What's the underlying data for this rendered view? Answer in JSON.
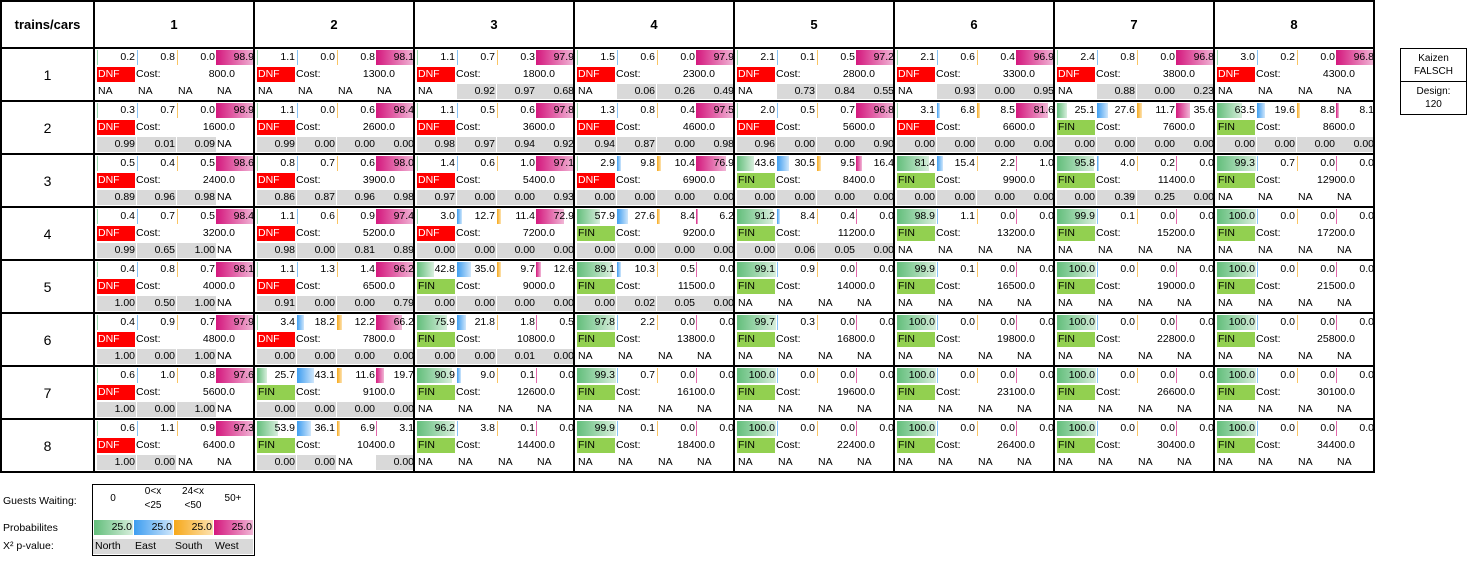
{
  "header": {
    "corner": "trains/cars",
    "cols": [
      "1",
      "2",
      "3",
      "4",
      "5",
      "6",
      "7",
      "8"
    ]
  },
  "rows": [
    {
      "label": "1",
      "cells": [
        {
          "p": [
            0.2,
            0.8,
            0.0,
            98.9
          ],
          "status": "DNF",
          "cost": "800.0",
          "x": [
            "NA",
            "NA",
            "NA",
            "NA"
          ]
        },
        {
          "p": [
            1.1,
            0.0,
            0.8,
            98.1
          ],
          "status": "DNF",
          "cost": "1300.0",
          "x": [
            "NA",
            "NA",
            "NA",
            "NA"
          ]
        },
        {
          "p": [
            1.1,
            0.7,
            0.3,
            97.9
          ],
          "status": "DNF",
          "cost": "1800.0",
          "x": [
            "NA",
            "0.92",
            "0.97",
            "0.68"
          ]
        },
        {
          "p": [
            1.5,
            0.6,
            0.0,
            97.9
          ],
          "status": "DNF",
          "cost": "2300.0",
          "x": [
            "NA",
            "0.06",
            "0.26",
            "0.49"
          ]
        },
        {
          "p": [
            2.1,
            0.1,
            0.5,
            97.2
          ],
          "status": "DNF",
          "cost": "2800.0",
          "x": [
            "NA",
            "0.73",
            "0.84",
            "0.55"
          ]
        },
        {
          "p": [
            2.1,
            0.6,
            0.4,
            96.9
          ],
          "status": "DNF",
          "cost": "3300.0",
          "x": [
            "NA",
            "0.93",
            "0.00",
            "0.95"
          ]
        },
        {
          "p": [
            2.4,
            0.8,
            0.0,
            96.8
          ],
          "status": "DNF",
          "cost": "3800.0",
          "x": [
            "NA",
            "0.88",
            "0.00",
            "0.23"
          ]
        },
        {
          "p": [
            3.0,
            0.2,
            0.0,
            96.8
          ],
          "status": "DNF",
          "cost": "4300.0",
          "x": [
            "NA",
            "NA",
            "NA",
            "NA"
          ]
        }
      ]
    },
    {
      "label": "2",
      "cells": [
        {
          "p": [
            0.3,
            0.7,
            0.0,
            98.9
          ],
          "status": "DNF",
          "cost": "1600.0",
          "x": [
            "0.99",
            "0.01",
            "0.09",
            "NA"
          ]
        },
        {
          "p": [
            1.1,
            0.0,
            0.6,
            98.4
          ],
          "status": "DNF",
          "cost": "2600.0",
          "x": [
            "0.99",
            "0.00",
            "0.00",
            "0.00"
          ]
        },
        {
          "p": [
            1.1,
            0.5,
            0.6,
            97.8
          ],
          "status": "DNF",
          "cost": "3600.0",
          "x": [
            "0.98",
            "0.97",
            "0.94",
            "0.92"
          ]
        },
        {
          "p": [
            1.3,
            0.8,
            0.4,
            97.5
          ],
          "status": "DNF",
          "cost": "4600.0",
          "x": [
            "0.94",
            "0.87",
            "0.00",
            "0.98"
          ]
        },
        {
          "p": [
            2.0,
            0.5,
            0.7,
            96.8
          ],
          "status": "DNF",
          "cost": "5600.0",
          "x": [
            "0.96",
            "0.00",
            "0.00",
            "0.90"
          ]
        },
        {
          "p": [
            3.1,
            6.8,
            8.5,
            81.6
          ],
          "status": "DNF",
          "cost": "6600.0",
          "x": [
            "0.00",
            "0.00",
            "0.00",
            "0.00"
          ]
        },
        {
          "p": [
            25.1,
            27.6,
            11.7,
            35.6
          ],
          "status": "FIN",
          "cost": "7600.0",
          "x": [
            "0.00",
            "0.00",
            "0.00",
            "0.00"
          ]
        },
        {
          "p": [
            63.5,
            19.6,
            8.8,
            8.1
          ],
          "status": "FIN",
          "cost": "8600.0",
          "x": [
            "0.00",
            "0.00",
            "0.00",
            "0.00"
          ]
        }
      ]
    },
    {
      "label": "3",
      "cells": [
        {
          "p": [
            0.5,
            0.4,
            0.5,
            98.6
          ],
          "status": "DNF",
          "cost": "2400.0",
          "x": [
            "0.89",
            "0.96",
            "0.98",
            "NA"
          ]
        },
        {
          "p": [
            0.8,
            0.7,
            0.6,
            98.0
          ],
          "status": "DNF",
          "cost": "3900.0",
          "x": [
            "0.86",
            "0.87",
            "0.96",
            "0.98"
          ]
        },
        {
          "p": [
            1.4,
            0.6,
            1.0,
            97.1
          ],
          "status": "DNF",
          "cost": "5400.0",
          "x": [
            "0.97",
            "0.00",
            "0.00",
            "0.93"
          ]
        },
        {
          "p": [
            2.9,
            9.8,
            10.4,
            76.9
          ],
          "status": "DNF",
          "cost": "6900.0",
          "x": [
            "0.00",
            "0.00",
            "0.00",
            "0.00"
          ]
        },
        {
          "p": [
            43.6,
            30.5,
            9.5,
            16.4
          ],
          "status": "FIN",
          "cost": "8400.0",
          "x": [
            "0.00",
            "0.00",
            "0.00",
            "0.00"
          ]
        },
        {
          "p": [
            81.4,
            15.4,
            2.2,
            1.0
          ],
          "status": "FIN",
          "cost": "9900.0",
          "x": [
            "0.00",
            "0.00",
            "0.00",
            "0.00"
          ]
        },
        {
          "p": [
            95.8,
            4.0,
            0.2,
            0.0
          ],
          "status": "FIN",
          "cost": "11400.0",
          "x": [
            "0.00",
            "0.39",
            "0.25",
            "0.00"
          ]
        },
        {
          "p": [
            99.3,
            0.7,
            0.0,
            0.0
          ],
          "status": "FIN",
          "cost": "12900.0",
          "x": [
            "NA",
            "NA",
            "NA",
            "NA"
          ]
        }
      ]
    },
    {
      "label": "4",
      "cells": [
        {
          "p": [
            0.4,
            0.7,
            0.5,
            98.4
          ],
          "status": "DNF",
          "cost": "3200.0",
          "x": [
            "0.99",
            "0.65",
            "1.00",
            "NA"
          ]
        },
        {
          "p": [
            1.1,
            0.6,
            0.9,
            97.4
          ],
          "status": "DNF",
          "cost": "5200.0",
          "x": [
            "0.98",
            "0.00",
            "0.81",
            "0.89"
          ]
        },
        {
          "p": [
            3.0,
            12.7,
            11.4,
            72.9
          ],
          "status": "DNF",
          "cost": "7200.0",
          "x": [
            "0.00",
            "0.00",
            "0.00",
            "0.00"
          ]
        },
        {
          "p": [
            57.9,
            27.6,
            8.4,
            6.2
          ],
          "status": "FIN",
          "cost": "9200.0",
          "x": [
            "0.00",
            "0.00",
            "0.00",
            "0.00"
          ]
        },
        {
          "p": [
            91.2,
            8.4,
            0.4,
            0.0
          ],
          "status": "FIN",
          "cost": "11200.0",
          "x": [
            "0.00",
            "0.06",
            "0.05",
            "0.00"
          ]
        },
        {
          "p": [
            98.9,
            1.1,
            0.0,
            0.0
          ],
          "status": "FIN",
          "cost": "13200.0",
          "x": [
            "NA",
            "NA",
            "NA",
            "NA"
          ]
        },
        {
          "p": [
            99.9,
            0.1,
            0.0,
            0.0
          ],
          "status": "FIN",
          "cost": "15200.0",
          "x": [
            "NA",
            "NA",
            "NA",
            "NA"
          ]
        },
        {
          "p": [
            100.0,
            0.0,
            0.0,
            0.0
          ],
          "status": "FIN",
          "cost": "17200.0",
          "x": [
            "NA",
            "NA",
            "NA",
            "NA"
          ]
        }
      ]
    },
    {
      "label": "5",
      "cells": [
        {
          "p": [
            0.4,
            0.8,
            0.7,
            98.1
          ],
          "status": "DNF",
          "cost": "4000.0",
          "x": [
            "1.00",
            "0.50",
            "1.00",
            "NA"
          ]
        },
        {
          "p": [
            1.1,
            1.3,
            1.4,
            96.2
          ],
          "status": "DNF",
          "cost": "6500.0",
          "x": [
            "0.91",
            "0.00",
            "0.00",
            "0.79"
          ]
        },
        {
          "p": [
            42.8,
            35.0,
            9.7,
            12.6
          ],
          "status": "FIN",
          "cost": "9000.0",
          "x": [
            "0.00",
            "0.00",
            "0.00",
            "0.00"
          ]
        },
        {
          "p": [
            89.1,
            10.3,
            0.5,
            0.0
          ],
          "status": "FIN",
          "cost": "11500.0",
          "x": [
            "0.00",
            "0.02",
            "0.05",
            "0.00"
          ]
        },
        {
          "p": [
            99.1,
            0.9,
            0.0,
            0.0
          ],
          "status": "FIN",
          "cost": "14000.0",
          "x": [
            "NA",
            "NA",
            "NA",
            "NA"
          ]
        },
        {
          "p": [
            99.9,
            0.1,
            0.0,
            0.0
          ],
          "status": "FIN",
          "cost": "16500.0",
          "x": [
            "NA",
            "NA",
            "NA",
            "NA"
          ]
        },
        {
          "p": [
            100.0,
            0.0,
            0.0,
            0.0
          ],
          "status": "FIN",
          "cost": "19000.0",
          "x": [
            "NA",
            "NA",
            "NA",
            "NA"
          ]
        },
        {
          "p": [
            100.0,
            0.0,
            0.0,
            0.0
          ],
          "status": "FIN",
          "cost": "21500.0",
          "x": [
            "NA",
            "NA",
            "NA",
            "NA"
          ]
        }
      ]
    },
    {
      "label": "6",
      "cells": [
        {
          "p": [
            0.4,
            0.9,
            0.7,
            97.9
          ],
          "status": "DNF",
          "cost": "4800.0",
          "x": [
            "1.00",
            "0.00",
            "1.00",
            "NA"
          ]
        },
        {
          "p": [
            3.4,
            18.2,
            12.2,
            66.2
          ],
          "status": "DNF",
          "cost": "7800.0",
          "x": [
            "0.00",
            "0.00",
            "0.00",
            "0.00"
          ]
        },
        {
          "p": [
            75.9,
            21.8,
            1.8,
            0.5
          ],
          "status": "FIN",
          "cost": "10800.0",
          "x": [
            "0.00",
            "0.00",
            "0.01",
            "0.00"
          ]
        },
        {
          "p": [
            97.8,
            2.2,
            0.0,
            0.0
          ],
          "status": "FIN",
          "cost": "13800.0",
          "x": [
            "NA",
            "NA",
            "NA",
            "NA"
          ]
        },
        {
          "p": [
            99.7,
            0.3,
            0.0,
            0.0
          ],
          "status": "FIN",
          "cost": "16800.0",
          "x": [
            "NA",
            "NA",
            "NA",
            "NA"
          ]
        },
        {
          "p": [
            100.0,
            0.0,
            0.0,
            0.0
          ],
          "status": "FIN",
          "cost": "19800.0",
          "x": [
            "NA",
            "NA",
            "NA",
            "NA"
          ]
        },
        {
          "p": [
            100.0,
            0.0,
            0.0,
            0.0
          ],
          "status": "FIN",
          "cost": "22800.0",
          "x": [
            "NA",
            "NA",
            "NA",
            "NA"
          ]
        },
        {
          "p": [
            100.0,
            0.0,
            0.0,
            0.0
          ],
          "status": "FIN",
          "cost": "25800.0",
          "x": [
            "NA",
            "NA",
            "NA",
            "NA"
          ]
        }
      ]
    },
    {
      "label": "7",
      "cells": [
        {
          "p": [
            0.6,
            1.0,
            0.8,
            97.6
          ],
          "status": "DNF",
          "cost": "5600.0",
          "x": [
            "1.00",
            "0.00",
            "1.00",
            "NA"
          ]
        },
        {
          "p": [
            25.7,
            43.1,
            11.6,
            19.7
          ],
          "status": "FIN",
          "cost": "9100.0",
          "x": [
            "0.00",
            "0.00",
            "0.00",
            "0.00"
          ]
        },
        {
          "p": [
            90.9,
            9.0,
            0.1,
            0.0
          ],
          "status": "FIN",
          "cost": "12600.0",
          "x": [
            "NA",
            "NA",
            "NA",
            "NA"
          ]
        },
        {
          "p": [
            99.3,
            0.7,
            0.0,
            0.0
          ],
          "status": "FIN",
          "cost": "16100.0",
          "x": [
            "NA",
            "NA",
            "NA",
            "NA"
          ]
        },
        {
          "p": [
            100.0,
            0.0,
            0.0,
            0.0
          ],
          "status": "FIN",
          "cost": "19600.0",
          "x": [
            "NA",
            "NA",
            "NA",
            "NA"
          ]
        },
        {
          "p": [
            100.0,
            0.0,
            0.0,
            0.0
          ],
          "status": "FIN",
          "cost": "23100.0",
          "x": [
            "NA",
            "NA",
            "NA",
            "NA"
          ]
        },
        {
          "p": [
            100.0,
            0.0,
            0.0,
            0.0
          ],
          "status": "FIN",
          "cost": "26600.0",
          "x": [
            "NA",
            "NA",
            "NA",
            "NA"
          ]
        },
        {
          "p": [
            100.0,
            0.0,
            0.0,
            0.0
          ],
          "status": "FIN",
          "cost": "30100.0",
          "x": [
            "NA",
            "NA",
            "NA",
            "NA"
          ]
        }
      ]
    },
    {
      "label": "8",
      "cells": [
        {
          "p": [
            0.6,
            1.1,
            0.9,
            97.3
          ],
          "status": "DNF",
          "cost": "6400.0",
          "x": [
            "1.00",
            "0.00",
            "NA",
            "NA"
          ]
        },
        {
          "p": [
            53.9,
            36.1,
            6.9,
            3.1
          ],
          "status": "FIN",
          "cost": "10400.0",
          "x": [
            "0.00",
            "0.00",
            "NA",
            "0.00"
          ]
        },
        {
          "p": [
            96.2,
            3.8,
            0.1,
            0.0
          ],
          "status": "FIN",
          "cost": "14400.0",
          "x": [
            "NA",
            "NA",
            "NA",
            "NA"
          ]
        },
        {
          "p": [
            99.9,
            0.1,
            0.0,
            0.0
          ],
          "status": "FIN",
          "cost": "18400.0",
          "x": [
            "NA",
            "NA",
            "NA",
            "NA"
          ]
        },
        {
          "p": [
            100.0,
            0.0,
            0.0,
            0.0
          ],
          "status": "FIN",
          "cost": "22400.0",
          "x": [
            "NA",
            "NA",
            "NA",
            "NA"
          ]
        },
        {
          "p": [
            100.0,
            0.0,
            0.0,
            0.0
          ],
          "status": "FIN",
          "cost": "26400.0",
          "x": [
            "NA",
            "NA",
            "NA",
            "NA"
          ]
        },
        {
          "p": [
            100.0,
            0.0,
            0.0,
            0.0
          ],
          "status": "FIN",
          "cost": "30400.0",
          "x": [
            "NA",
            "NA",
            "NA",
            "NA"
          ]
        },
        {
          "p": [
            100.0,
            0.0,
            0.0,
            0.0
          ],
          "status": "FIN",
          "cost": "34400.0",
          "x": [
            "NA",
            "NA",
            "NA",
            "NA"
          ]
        }
      ]
    }
  ],
  "cost_label": "Cost:",
  "side": {
    "kaizen": "Kaizen",
    "falsch": "FALSCH",
    "design_label": "Design:",
    "design_value": "120"
  },
  "legend": {
    "guests_label": "Guests Waiting:",
    "probabilities_label": "Probabilites",
    "xsq_label": "X² p-value:",
    "headers": [
      "0",
      "0<x\n<25",
      "24<x\n<50",
      "50+"
    ],
    "probabilities": [
      25.0,
      25.0,
      25.0,
      25.0
    ],
    "directions": [
      "North",
      "East",
      "South",
      "West"
    ]
  },
  "colors": {
    "north": "#63be7b",
    "east": "#3d9df0",
    "south": "#f6a81a",
    "west": "#d4177d",
    "dnf": "#ff0000",
    "fin": "#92d050",
    "na_gray": "#d9d9d9"
  }
}
